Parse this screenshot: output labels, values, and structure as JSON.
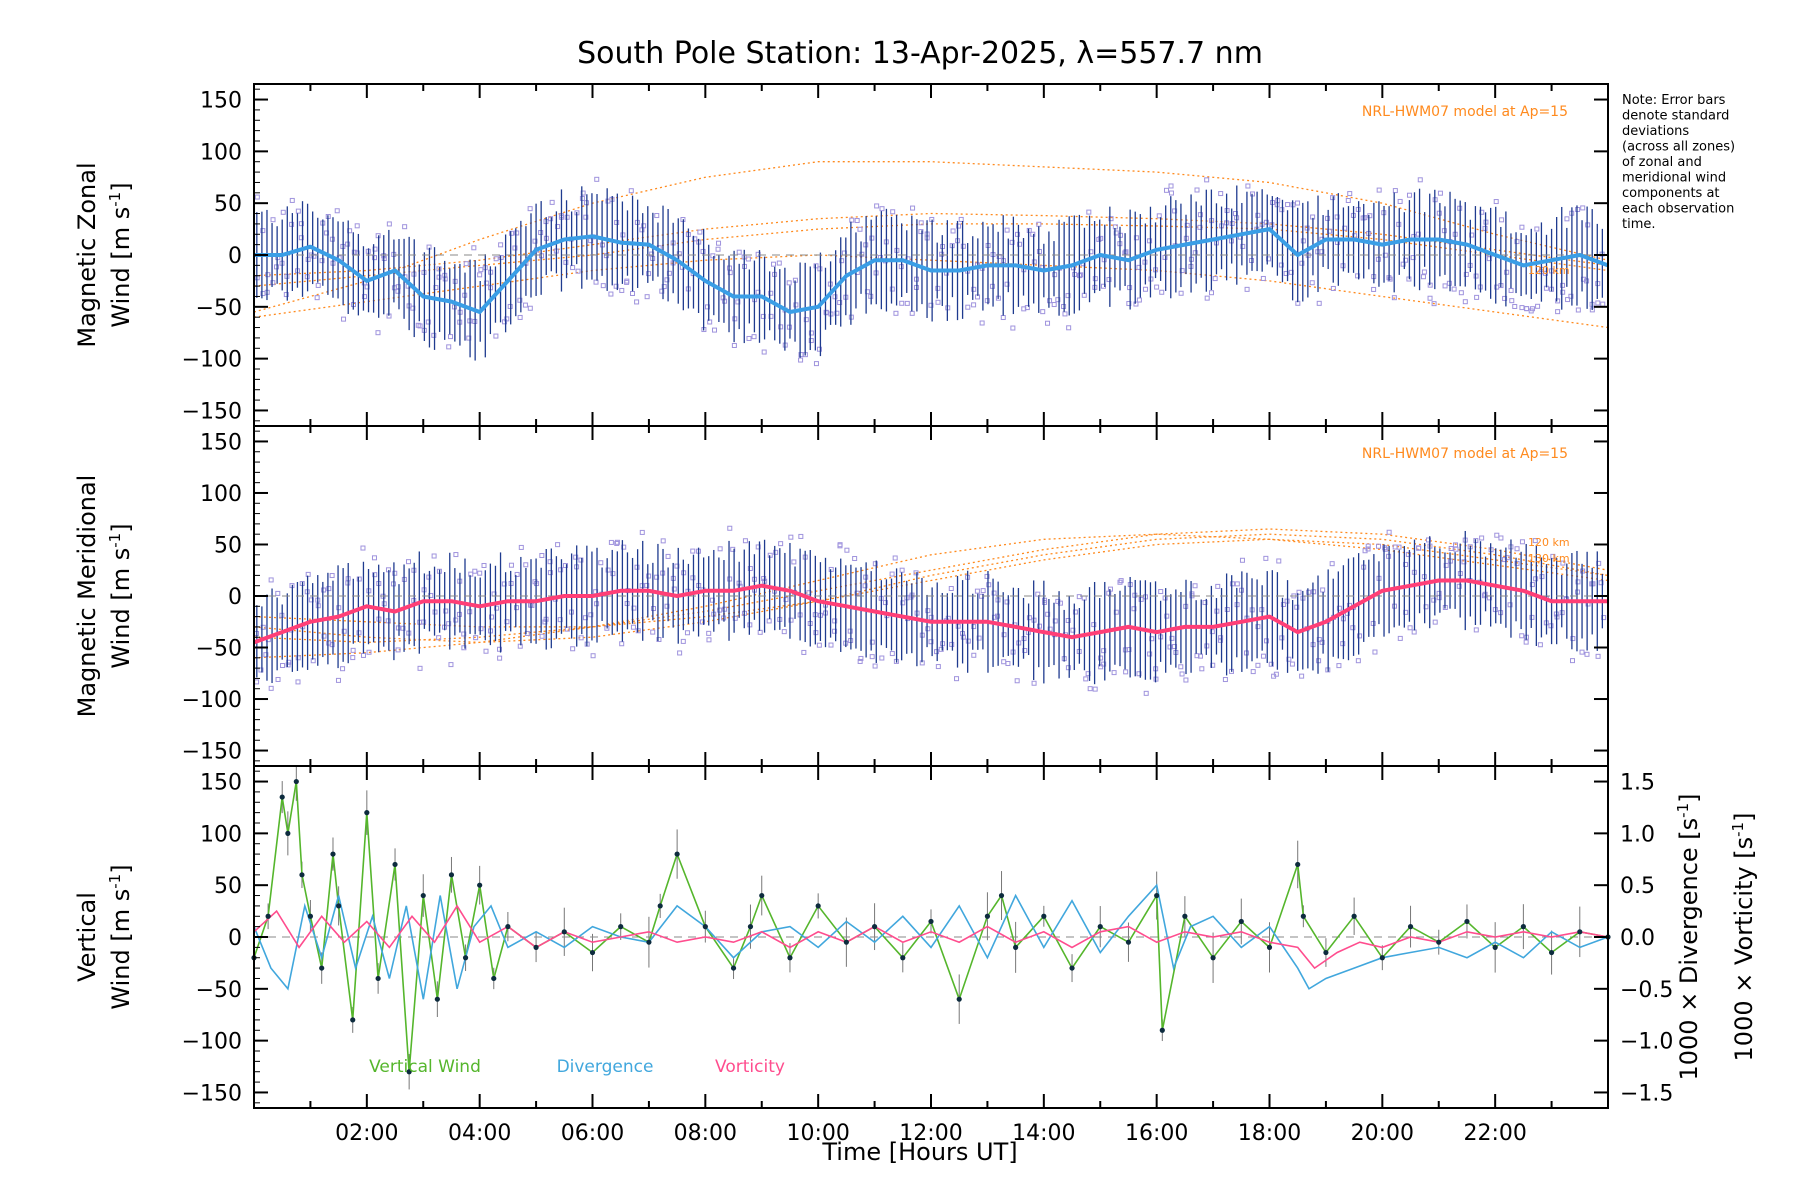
{
  "title": "South Pole Station: 13-Apr-2025, λ=557.7 nm",
  "note_lines": [
    "Note: Error bars",
    "denote standard",
    "deviations",
    "(across all zones)",
    "of zonal and",
    "meridional wind",
    "components at",
    "each observation",
    "time."
  ],
  "x_axis": {
    "label": "Time [Hours UT]",
    "range": [
      0,
      24
    ],
    "tick_labels": [
      "02:00",
      "04:00",
      "06:00",
      "08:00",
      "10:00",
      "12:00",
      "14:00",
      "16:00",
      "18:00",
      "20:00",
      "22:00"
    ]
  },
  "colors": {
    "zonal_mean": "#3a9ee6",
    "meridional_mean": "#ff3f77",
    "errorbar": "#1f3b8f",
    "model": "#ff8a1e",
    "scatter": "#9f93dd",
    "vertical": "#55b62c",
    "divergence": "#41a7dd",
    "vorticity": "#ff4d8e"
  },
  "chart_data": [
    {
      "id": "zonal",
      "type": "line",
      "ylabel_line1": "Magnetic Zonal",
      "ylabel_line2": "Wind [m s",
      "ylabel_sup": "-1",
      "ylabel_end": "]",
      "ylim": [
        -165,
        165
      ],
      "yticks": [
        -150,
        -100,
        -50,
        0,
        50,
        100,
        150
      ],
      "model_label": "NRL-HWM07 model at Ap=15",
      "model_alt_labels": [
        "120 km"
      ],
      "mean_series": {
        "x": [
          0.0,
          0.5,
          1.0,
          1.5,
          2.0,
          2.5,
          3.0,
          3.5,
          4.0,
          4.5,
          5.0,
          5.5,
          6.0,
          6.5,
          7.0,
          7.5,
          8.0,
          8.5,
          9.0,
          9.5,
          10.0,
          10.5,
          11.0,
          11.5,
          12.0,
          12.5,
          13.0,
          13.5,
          14.0,
          14.5,
          15.0,
          15.5,
          16.0,
          16.5,
          17.0,
          17.5,
          18.0,
          18.5,
          19.0,
          19.5,
          20.0,
          20.5,
          21.0,
          21.5,
          22.0,
          22.5,
          23.0,
          23.5,
          24.0
        ],
        "y": [
          0,
          0,
          8,
          -5,
          -25,
          -15,
          -40,
          -45,
          -55,
          -25,
          5,
          15,
          18,
          12,
          10,
          -5,
          -25,
          -40,
          -40,
          -55,
          -50,
          -20,
          -5,
          -5,
          -15,
          -15,
          -10,
          -10,
          -15,
          -10,
          0,
          -5,
          5,
          10,
          15,
          20,
          25,
          0,
          15,
          15,
          10,
          15,
          15,
          10,
          0,
          -10,
          -5,
          0,
          -10
        ]
      },
      "model_curves": [
        {
          "x": [
            0,
            2,
            4,
            6,
            8,
            10,
            12,
            14,
            16,
            18,
            20,
            22,
            24
          ],
          "y": [
            -55,
            -25,
            15,
            50,
            75,
            90,
            90,
            85,
            80,
            70,
            50,
            20,
            -5
          ]
        },
        {
          "x": [
            0,
            2,
            4,
            6,
            8,
            10,
            12,
            14,
            16,
            18,
            20,
            22,
            24
          ],
          "y": [
            -20,
            -15,
            -5,
            10,
            25,
            35,
            40,
            38,
            35,
            30,
            20,
            5,
            -10
          ]
        },
        {
          "x": [
            0,
            2,
            4,
            6,
            8,
            10,
            12,
            14,
            16,
            18,
            20,
            22,
            24
          ],
          "y": [
            -30,
            -20,
            -10,
            0,
            15,
            25,
            30,
            30,
            28,
            25,
            15,
            0,
            -15
          ]
        },
        {
          "x": [
            0,
            2,
            4,
            6,
            8,
            10,
            12,
            14,
            16,
            18,
            20,
            22,
            24
          ],
          "y": [
            -60,
            -45,
            -30,
            -15,
            -5,
            0,
            -5,
            -10,
            -15,
            -25,
            -40,
            -55,
            -70
          ]
        }
      ]
    },
    {
      "id": "meridional",
      "type": "line",
      "ylabel_line1": "Magnetic Meridional",
      "ylabel_line2": "Wind [m s",
      "ylabel_sup": "-1",
      "ylabel_end": "]",
      "ylim": [
        -165,
        165
      ],
      "yticks": [
        -150,
        -100,
        -50,
        0,
        50,
        100,
        150
      ],
      "model_label": "NRL-HWM07 model at Ap=15",
      "model_alt_labels": [
        "120 km",
        "130 km"
      ],
      "mean_series": {
        "x": [
          0.0,
          0.5,
          1.0,
          1.5,
          2.0,
          2.5,
          3.0,
          3.5,
          4.0,
          4.5,
          5.0,
          5.5,
          6.0,
          6.5,
          7.0,
          7.5,
          8.0,
          8.5,
          9.0,
          9.5,
          10.0,
          10.5,
          11.0,
          11.5,
          12.0,
          12.5,
          13.0,
          13.5,
          14.0,
          14.5,
          15.0,
          15.5,
          16.0,
          16.5,
          17.0,
          17.5,
          18.0,
          18.5,
          19.0,
          19.5,
          20.0,
          20.5,
          21.0,
          21.5,
          22.0,
          22.5,
          23.0,
          23.5,
          24.0
        ],
        "y": [
          -45,
          -35,
          -25,
          -20,
          -10,
          -15,
          -5,
          -5,
          -10,
          -5,
          -5,
          0,
          0,
          5,
          5,
          0,
          5,
          5,
          10,
          5,
          -5,
          -10,
          -15,
          -20,
          -25,
          -25,
          -25,
          -30,
          -35,
          -40,
          -35,
          -30,
          -35,
          -30,
          -30,
          -25,
          -20,
          -35,
          -25,
          -10,
          5,
          10,
          15,
          15,
          10,
          5,
          -5,
          -5,
          -5
        ]
      },
      "model_curves": [
        {
          "x": [
            0,
            2,
            4,
            6,
            8,
            10,
            12,
            14,
            16,
            18,
            20,
            22,
            24
          ],
          "y": [
            -60,
            -55,
            -45,
            -30,
            -10,
            15,
            40,
            55,
            60,
            55,
            45,
            30,
            15
          ]
        },
        {
          "x": [
            0,
            2,
            4,
            6,
            8,
            10,
            12,
            14,
            16,
            18,
            20,
            22,
            24
          ],
          "y": [
            -40,
            -45,
            -40,
            -30,
            -15,
            5,
            25,
            45,
            60,
            65,
            60,
            45,
            25
          ]
        },
        {
          "x": [
            0,
            2,
            4,
            6,
            8,
            10,
            12,
            14,
            16,
            18,
            20,
            22,
            24
          ],
          "y": [
            -30,
            -40,
            -45,
            -40,
            -25,
            -5,
            20,
            40,
            55,
            60,
            55,
            40,
            20
          ]
        },
        {
          "x": [
            0,
            2,
            4,
            6,
            8,
            10,
            12,
            14,
            16,
            18,
            20,
            22,
            24
          ],
          "y": [
            -20,
            -25,
            -30,
            -30,
            -20,
            -5,
            15,
            35,
            50,
            55,
            50,
            35,
            20
          ]
        }
      ]
    },
    {
      "id": "vertical",
      "type": "line",
      "ylabel_line1": "Vertical",
      "ylabel_line2": "Wind [m s",
      "ylabel_sup": "-1",
      "ylabel_end": "]",
      "ylim": [
        -165,
        165
      ],
      "yticks": [
        -150,
        -100,
        -50,
        0,
        50,
        100,
        150
      ],
      "y2": {
        "ylim": [
          -1.65,
          1.65
        ],
        "yticks": [
          -1.5,
          -1.0,
          -0.5,
          0.0,
          0.5,
          1.0,
          1.5
        ],
        "tick_labels": [
          "−1.5",
          "−1.0",
          "−0.5",
          "0.0",
          "0.5",
          "1.0",
          "1.5"
        ],
        "label_divergence": "1000 × Divergence [s",
        "label_vorticity": "1000 × Vorticity [s",
        "label_sup": "-1",
        "label_end": "]"
      },
      "legend": [
        "Vertical Wind",
        "Divergence",
        "Vorticity"
      ],
      "series": [
        {
          "name": "Vertical Wind",
          "x": [
            0.0,
            0.25,
            0.5,
            0.6,
            0.75,
            0.85,
            1.0,
            1.2,
            1.4,
            1.5,
            1.75,
            2.0,
            2.2,
            2.5,
            2.75,
            3.0,
            3.25,
            3.5,
            3.75,
            4.0,
            4.25,
            4.5,
            5.0,
            5.5,
            6.0,
            6.5,
            7.0,
            7.2,
            7.5,
            8.0,
            8.5,
            8.8,
            9.0,
            9.5,
            10.0,
            10.5,
            11.0,
            11.5,
            12.0,
            12.5,
            13.0,
            13.25,
            13.5,
            14.0,
            14.5,
            15.0,
            15.5,
            16.0,
            16.1,
            16.5,
            17.0,
            17.5,
            18.0,
            18.5,
            18.6,
            19.0,
            19.5,
            20.0,
            20.5,
            21.0,
            21.5,
            22.0,
            22.5,
            23.0,
            23.5,
            24.0
          ],
          "y": [
            -20,
            20,
            135,
            100,
            150,
            60,
            20,
            -30,
            80,
            30,
            -80,
            120,
            -40,
            70,
            -130,
            40,
            -60,
            60,
            -20,
            50,
            -40,
            10,
            -10,
            5,
            -15,
            10,
            -5,
            30,
            80,
            10,
            -30,
            10,
            40,
            -20,
            30,
            -5,
            10,
            -20,
            15,
            -60,
            20,
            40,
            -10,
            20,
            -30,
            10,
            -5,
            40,
            -90,
            20,
            -20,
            15,
            -10,
            70,
            20,
            -15,
            20,
            -20,
            10,
            -5,
            15,
            -10,
            10,
            -15,
            5,
            0
          ]
        },
        {
          "name": "Divergence",
          "x": [
            0.0,
            0.3,
            0.6,
            0.9,
            1.2,
            1.5,
            1.8,
            2.1,
            2.4,
            2.7,
            3.0,
            3.3,
            3.6,
            3.9,
            4.2,
            4.5,
            5.0,
            5.5,
            6.0,
            6.5,
            7.0,
            7.5,
            8.0,
            8.5,
            9.0,
            9.5,
            10.0,
            10.5,
            11.0,
            11.5,
            12.0,
            12.5,
            13.0,
            13.5,
            14.0,
            14.5,
            15.0,
            15.5,
            16.0,
            16.3,
            16.6,
            17.0,
            17.5,
            18.0,
            18.5,
            18.7,
            19.0,
            19.5,
            20.0,
            20.5,
            21.0,
            21.5,
            22.0,
            22.5,
            23.0,
            23.5,
            24.0
          ],
          "y": [
            0.1,
            -0.3,
            -0.5,
            0.3,
            -0.2,
            0.4,
            -0.3,
            0.2,
            -0.4,
            0.3,
            -0.6,
            0.4,
            -0.5,
            0.1,
            0.3,
            -0.1,
            0.05,
            -0.1,
            0.1,
            0.0,
            -0.05,
            0.3,
            0.1,
            -0.2,
            0.05,
            0.1,
            -0.1,
            0.15,
            -0.05,
            0.2,
            -0.1,
            0.3,
            -0.2,
            0.4,
            -0.1,
            0.35,
            -0.15,
            0.2,
            0.5,
            -0.3,
            0.1,
            0.2,
            -0.1,
            0.1,
            -0.3,
            -0.5,
            -0.4,
            -0.3,
            -0.2,
            -0.15,
            -0.1,
            -0.2,
            -0.05,
            -0.2,
            0.05,
            -0.1,
            0.0
          ]
        },
        {
          "name": "Vorticity",
          "x": [
            0.0,
            0.4,
            0.8,
            1.2,
            1.6,
            2.0,
            2.4,
            2.8,
            3.2,
            3.6,
            4.0,
            4.5,
            5.0,
            5.5,
            6.0,
            6.5,
            7.0,
            7.5,
            8.0,
            8.5,
            9.0,
            9.5,
            10.0,
            10.5,
            11.0,
            11.5,
            12.0,
            12.5,
            13.0,
            13.5,
            14.0,
            14.5,
            15.0,
            15.5,
            16.0,
            16.5,
            17.0,
            17.5,
            18.0,
            18.5,
            18.8,
            19.2,
            19.6,
            20.0,
            20.5,
            21.0,
            21.5,
            22.0,
            22.5,
            23.0,
            23.5,
            24.0
          ],
          "y": [
            0.05,
            0.25,
            -0.1,
            0.2,
            -0.05,
            0.15,
            -0.1,
            0.2,
            -0.05,
            0.3,
            -0.05,
            0.1,
            -0.1,
            0.05,
            -0.05,
            0.0,
            0.05,
            -0.05,
            0.0,
            -0.05,
            0.05,
            -0.1,
            0.05,
            -0.05,
            0.1,
            -0.05,
            0.05,
            -0.05,
            0.1,
            -0.05,
            0.05,
            -0.1,
            0.05,
            0.1,
            -0.05,
            0.05,
            0.0,
            0.05,
            -0.05,
            -0.1,
            -0.3,
            -0.15,
            -0.05,
            -0.1,
            0.0,
            -0.05,
            0.05,
            0.0,
            0.05,
            0.0,
            0.05,
            0.0
          ]
        }
      ]
    }
  ]
}
